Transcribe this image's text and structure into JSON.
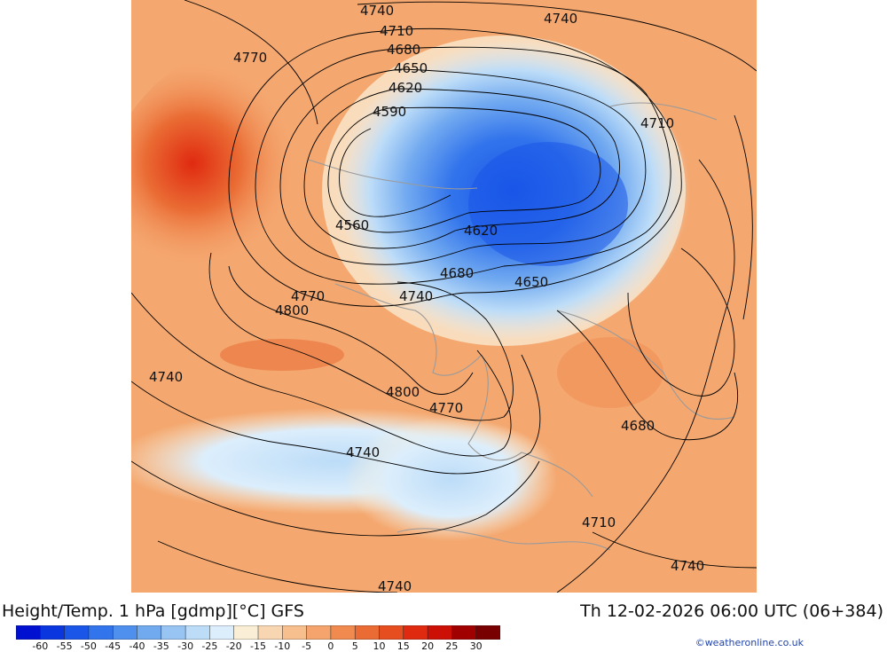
{
  "title": {
    "left": "Height/Temp. 1 hPa [gdmp][°C] GFS",
    "right": "Th 12-02-2026 06:00 UTC (06+384)"
  },
  "credit": "©weatheronline.co.uk",
  "colorbar": {
    "colors": [
      "#0010d0",
      "#0a36e0",
      "#1a56e8",
      "#3274ec",
      "#4f90ee",
      "#72aaf0",
      "#98c4f4",
      "#bcdcf8",
      "#dceefc",
      "#fbeed6",
      "#f9d6b2",
      "#f7be8e",
      "#f4a46c",
      "#f08a4e",
      "#ea6c34",
      "#e64e20",
      "#e02a10",
      "#cc1006",
      "#a00000",
      "#780000"
    ],
    "tick_labels": [
      "-60",
      "-55",
      "-50",
      "-45",
      "-40",
      "-35",
      "-30",
      "-25",
      "-20",
      "-15",
      "-10",
      "-5",
      "0",
      "5",
      "10",
      "15",
      "20",
      "25",
      "30"
    ]
  },
  "contour_labels": [
    {
      "text": "4740"
    },
    {
      "text": "4740"
    },
    {
      "text": "4770"
    },
    {
      "text": "4710"
    },
    {
      "text": "4680"
    },
    {
      "text": "4650"
    },
    {
      "text": "4620"
    },
    {
      "text": "4590"
    },
    {
      "text": "4710"
    },
    {
      "text": "4560"
    },
    {
      "text": "4620"
    },
    {
      "text": "4680"
    },
    {
      "text": "4650"
    },
    {
      "text": "4770"
    },
    {
      "text": "4740"
    },
    {
      "text": "4800"
    },
    {
      "text": "4740"
    },
    {
      "text": "4800"
    },
    {
      "text": "4770"
    },
    {
      "text": "4680"
    },
    {
      "text": "4740"
    },
    {
      "text": "4710"
    },
    {
      "text": "4740"
    },
    {
      "text": "4740"
    }
  ]
}
